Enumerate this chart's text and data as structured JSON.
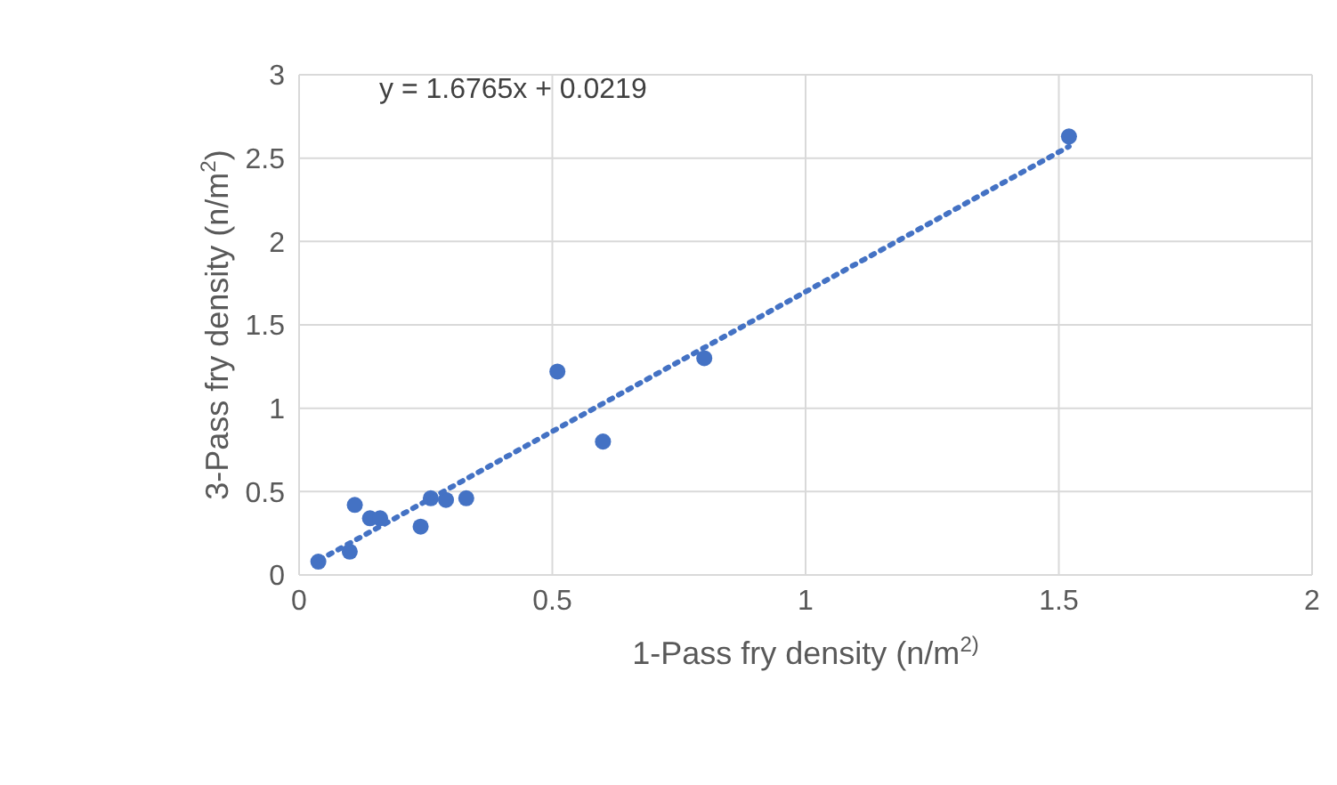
{
  "chart_data": {
    "type": "scatter",
    "xlabel": "1-Pass fry density (n/m$^{2)}$",
    "ylabel": "3-Pass fry density (n/m$^{2}$)",
    "annotations": [
      "y = 1.6765x + 0.0219"
    ],
    "series": [
      {
        "color": "#4472c4",
        "marker": "circle",
        "x": [
          0.038,
          0.1,
          0.11,
          0.14,
          0.16,
          0.24,
          0.26,
          0.29,
          0.33,
          0.51,
          0.6,
          0.8,
          1.52
        ],
        "values": [
          0.08,
          0.14,
          0.42,
          0.34,
          0.34,
          0.29,
          0.46,
          0.45,
          0.46,
          1.22,
          0.8,
          1.3,
          2.63
        ]
      },
      {
        "type": "line",
        "color": "#4472c4",
        "line_style": "dotted",
        "x": [
          0.04,
          1.52
        ],
        "values": [
          0.09,
          2.57
        ]
      }
    ],
    "xlim": [
      0,
      2
    ],
    "xticks": [
      0,
      0.5,
      1,
      1.5,
      2
    ],
    "ylim": [
      0,
      3
    ],
    "yticks": [
      0,
      0.5,
      1,
      1.5,
      2,
      2.5,
      3
    ],
    "grid": true
  }
}
